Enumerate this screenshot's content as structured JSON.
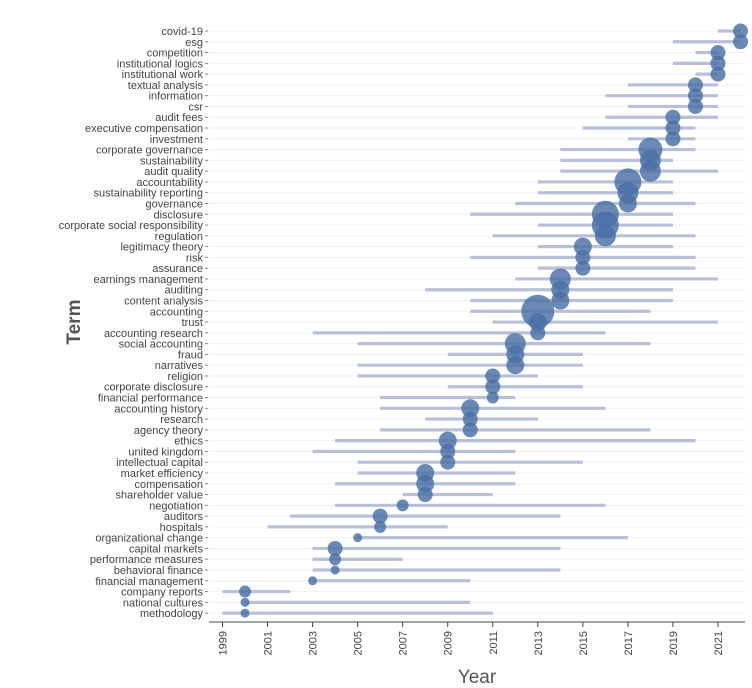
{
  "chart_data": {
    "type": "scatter",
    "xlabel": "Year",
    "ylabel": "Term",
    "xlim": [
      1998.4,
      2022.2
    ],
    "x_ticks": [
      1999,
      2001,
      2003,
      2005,
      2007,
      2009,
      2011,
      2013,
      2015,
      2017,
      2019,
      2021
    ],
    "grid": "horizontal",
    "legend": "none",
    "colors": {
      "point": "#4a6fa5",
      "range_bar": "#b8c0d8",
      "grid": "#f0f0f0",
      "axis": "#444444"
    },
    "terms": [
      {
        "term": "covid-19",
        "start": 2021,
        "end": 2022,
        "median": 2022,
        "freq": 2
      },
      {
        "term": "esg",
        "start": 2019,
        "end": 2022,
        "median": 2022,
        "freq": 2
      },
      {
        "term": "competition",
        "start": 2020,
        "end": 2021,
        "median": 2021,
        "freq": 2
      },
      {
        "term": "institutional logics",
        "start": 2019,
        "end": 2021,
        "median": 2021,
        "freq": 2
      },
      {
        "term": "institutional work",
        "start": 2020,
        "end": 2021,
        "median": 2021,
        "freq": 2
      },
      {
        "term": "textual analysis",
        "start": 2017,
        "end": 2021,
        "median": 2020,
        "freq": 2
      },
      {
        "term": "information",
        "start": 2016,
        "end": 2021,
        "median": 2020,
        "freq": 2
      },
      {
        "term": "csr",
        "start": 2017,
        "end": 2021,
        "median": 2020,
        "freq": 2
      },
      {
        "term": "audit fees",
        "start": 2016,
        "end": 2021,
        "median": 2019,
        "freq": 2
      },
      {
        "term": "executive compensation",
        "start": 2015,
        "end": 2020,
        "median": 2019,
        "freq": 2
      },
      {
        "term": "investment",
        "start": 2017,
        "end": 2020,
        "median": 2019,
        "freq": 2
      },
      {
        "term": "corporate governance",
        "start": 2014,
        "end": 2020,
        "median": 2018,
        "freq": 5
      },
      {
        "term": "sustainability",
        "start": 2014,
        "end": 2019,
        "median": 2018,
        "freq": 4
      },
      {
        "term": "audit quality",
        "start": 2014,
        "end": 2021,
        "median": 2018,
        "freq": 4
      },
      {
        "term": "accountability",
        "start": 2013,
        "end": 2019,
        "median": 2017,
        "freq": 6
      },
      {
        "term": "sustainability reporting",
        "start": 2013,
        "end": 2019,
        "median": 2017,
        "freq": 4
      },
      {
        "term": "governance",
        "start": 2012,
        "end": 2020,
        "median": 2017,
        "freq": 3
      },
      {
        "term": "disclosure",
        "start": 2010,
        "end": 2019,
        "median": 2016,
        "freq": 6
      },
      {
        "term": "corporate social responsibility",
        "start": 2013,
        "end": 2019,
        "median": 2016,
        "freq": 6
      },
      {
        "term": "regulation",
        "start": 2011,
        "end": 2020,
        "median": 2016,
        "freq": 4
      },
      {
        "term": "legitimacy theory",
        "start": 2013,
        "end": 2019,
        "median": 2015,
        "freq": 3
      },
      {
        "term": "risk",
        "start": 2010,
        "end": 2020,
        "median": 2015,
        "freq": 2
      },
      {
        "term": "assurance",
        "start": 2013,
        "end": 2020,
        "median": 2015,
        "freq": 2
      },
      {
        "term": "earnings management",
        "start": 2012,
        "end": 2021,
        "median": 2014,
        "freq": 4
      },
      {
        "term": "auditing",
        "start": 2008,
        "end": 2019,
        "median": 2014,
        "freq": 3
      },
      {
        "term": "content analysis",
        "start": 2010,
        "end": 2019,
        "median": 2014,
        "freq": 3
      },
      {
        "term": "accounting",
        "start": 2010,
        "end": 2018,
        "median": 2013,
        "freq": 8
      },
      {
        "term": "trust",
        "start": 2011,
        "end": 2021,
        "median": 2013,
        "freq": 3
      },
      {
        "term": "accounting research",
        "start": 2003,
        "end": 2016,
        "median": 2013,
        "freq": 2
      },
      {
        "term": "social accounting",
        "start": 2005,
        "end": 2018,
        "median": 2012,
        "freq": 4
      },
      {
        "term": "fraud",
        "start": 2009,
        "end": 2015,
        "median": 2012,
        "freq": 3
      },
      {
        "term": "narratives",
        "start": 2005,
        "end": 2015,
        "median": 2012,
        "freq": 3
      },
      {
        "term": "religion",
        "start": 2005,
        "end": 2013,
        "median": 2011,
        "freq": 2
      },
      {
        "term": "corporate disclosure",
        "start": 2009,
        "end": 2015,
        "median": 2011,
        "freq": 2
      },
      {
        "term": "financial performance",
        "start": 2006,
        "end": 2012,
        "median": 2011,
        "freq": 1
      },
      {
        "term": "accounting history",
        "start": 2006,
        "end": 2016,
        "median": 2010,
        "freq": 3
      },
      {
        "term": "research",
        "start": 2008,
        "end": 2013,
        "median": 2010,
        "freq": 2
      },
      {
        "term": "agency theory",
        "start": 2006,
        "end": 2018,
        "median": 2010,
        "freq": 2
      },
      {
        "term": "ethics",
        "start": 2004,
        "end": 2020,
        "median": 2009,
        "freq": 3
      },
      {
        "term": "united kingdom",
        "start": 2003,
        "end": 2012,
        "median": 2009,
        "freq": 2
      },
      {
        "term": "intellectual capital",
        "start": 2005,
        "end": 2015,
        "median": 2009,
        "freq": 2
      },
      {
        "term": "market efficiency",
        "start": 2005,
        "end": 2012,
        "median": 2008,
        "freq": 3
      },
      {
        "term": "compensation",
        "start": 2004,
        "end": 2012,
        "median": 2008,
        "freq": 3
      },
      {
        "term": "shareholder value",
        "start": 2007,
        "end": 2011,
        "median": 2008,
        "freq": 2
      },
      {
        "term": "negotiation",
        "start": 2004,
        "end": 2016,
        "median": 2007,
        "freq": 1
      },
      {
        "term": "auditors",
        "start": 2002,
        "end": 2014,
        "median": 2006,
        "freq": 2
      },
      {
        "term": "hospitals",
        "start": 2001,
        "end": 2009,
        "median": 2006,
        "freq": 1
      },
      {
        "term": "organizational change",
        "start": 2005,
        "end": 2017,
        "median": 2005,
        "freq": 0
      },
      {
        "term": "capital markets",
        "start": 2003,
        "end": 2014,
        "median": 2004,
        "freq": 2
      },
      {
        "term": "performance measures",
        "start": 2003,
        "end": 2007,
        "median": 2004,
        "freq": 1
      },
      {
        "term": "behavioral finance",
        "start": 2003,
        "end": 2014,
        "median": 2004,
        "freq": 0
      },
      {
        "term": "financial management",
        "start": 2003,
        "end": 2010,
        "median": 2003,
        "freq": 0
      },
      {
        "term": "company reports",
        "start": 1999,
        "end": 2002,
        "median": 2000,
        "freq": 1
      },
      {
        "term": "national cultures",
        "start": 2000,
        "end": 2010,
        "median": 2000,
        "freq": 0
      },
      {
        "term": "methodology",
        "start": 1999,
        "end": 2011,
        "median": 2000,
        "freq": 0
      }
    ]
  }
}
